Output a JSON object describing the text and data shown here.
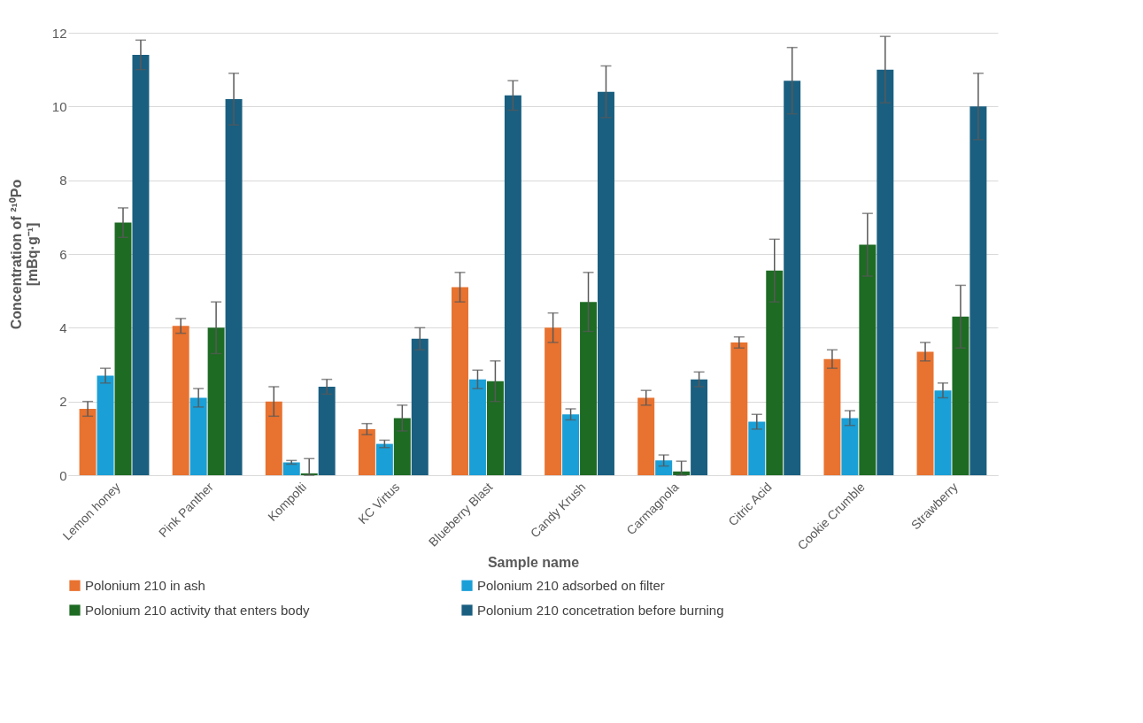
{
  "chart_data": {
    "type": "bar",
    "xlabel": "Sample name",
    "ylabel": "Concentration of ²¹⁰Po\n[mBq·g⁻¹]",
    "categories": [
      "Lemon honey",
      "Pink Panther",
      "Kompolti",
      "KC Virtus",
      "Blueberry Blast",
      "Candy Krush",
      "Carmagnola",
      "Citric Acid",
      "Cookie Crumble",
      "Strawberry"
    ],
    "series": [
      {
        "name": "Polonium 210 in ash",
        "color": "#e8722f",
        "values": [
          1.8,
          4.05,
          2.0,
          1.25,
          5.1,
          4.0,
          2.1,
          3.6,
          3.15,
          3.35
        ],
        "errors": [
          0.2,
          0.2,
          0.4,
          0.15,
          0.4,
          0.4,
          0.2,
          0.15,
          0.25,
          0.25
        ]
      },
      {
        "name": "Polonium 210 adsorbed on filter",
        "color": "#1a9fd6",
        "values": [
          2.7,
          2.1,
          0.35,
          0.85,
          2.6,
          1.65,
          0.4,
          1.45,
          1.55,
          2.3
        ],
        "errors": [
          0.2,
          0.25,
          0.05,
          0.1,
          0.25,
          0.15,
          0.15,
          0.2,
          0.2,
          0.2
        ]
      },
      {
        "name": "Polonium 210 activity that enters body",
        "color": "#1e6b24",
        "values": [
          6.85,
          4.0,
          0.05,
          1.55,
          2.55,
          4.7,
          0.1,
          5.55,
          6.25,
          4.3
        ],
        "errors": [
          0.4,
          0.7,
          [
            0,
            0.45
          ],
          0.35,
          0.55,
          0.8,
          [
            0,
            0.38
          ],
          0.85,
          0.85,
          0.85
        ]
      },
      {
        "name": "Polonium 210 concetration before burning",
        "color": "#1a5f80",
        "values": [
          11.4,
          10.2,
          2.4,
          3.7,
          10.3,
          10.4,
          2.6,
          10.7,
          11.0,
          10.0
        ],
        "errors": [
          0.4,
          0.7,
          0.2,
          0.3,
          0.4,
          0.7,
          0.2,
          0.9,
          0.9,
          0.9
        ]
      }
    ],
    "ylim": [
      0,
      12
    ],
    "yticks": [
      0,
      2,
      4,
      6,
      8,
      10,
      12
    ],
    "grid": "y",
    "legend": "bottom"
  }
}
